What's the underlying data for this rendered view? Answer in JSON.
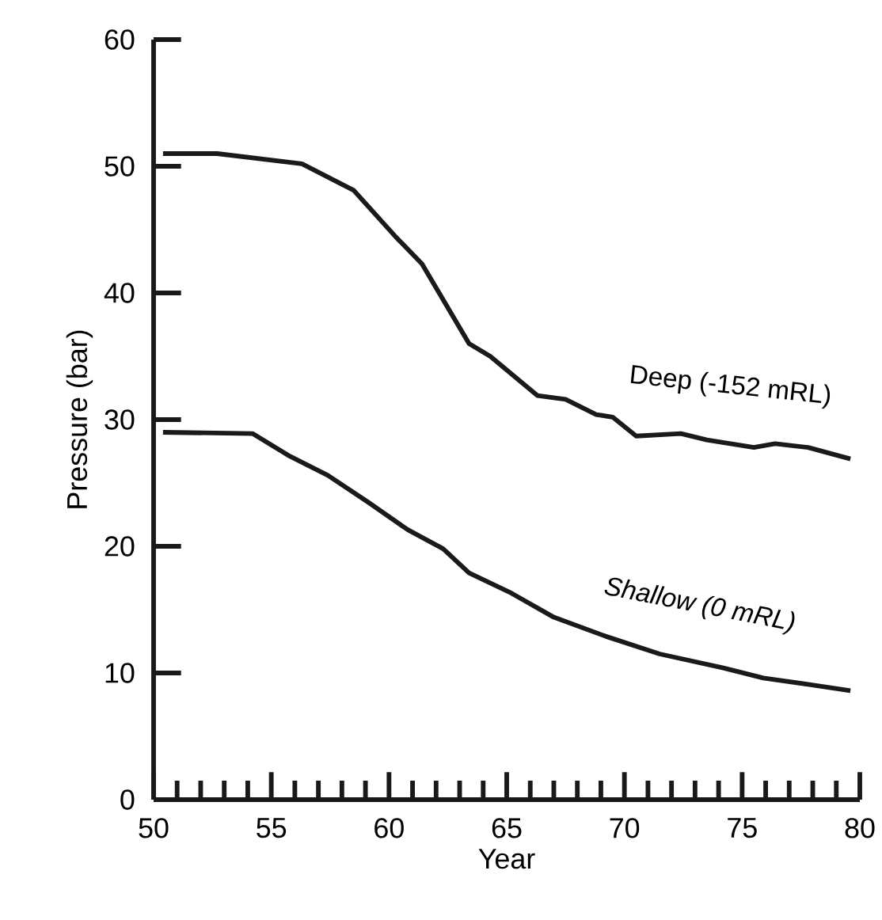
{
  "chart_data": {
    "type": "line",
    "xlabel": "Year",
    "ylabel": "Pressure (bar)",
    "xlim": [
      50,
      80
    ],
    "ylim": [
      0,
      60
    ],
    "xticks": [
      50,
      {
        "value": 51,
        "label": null
      },
      {
        "value": 52,
        "label": null
      },
      {
        "value": 53,
        "label": null
      },
      {
        "value": 54,
        "label": null
      },
      55,
      {
        "value": 56,
        "label": null
      },
      {
        "value": 57,
        "label": null
      },
      {
        "value": 58,
        "label": null
      },
      {
        "value": 59,
        "label": null
      },
      60,
      {
        "value": 61,
        "label": null
      },
      {
        "value": 62,
        "label": null
      },
      {
        "value": 63,
        "label": null
      },
      {
        "value": 64,
        "label": null
      },
      65,
      {
        "value": 66,
        "label": null
      },
      {
        "value": 67,
        "label": null
      },
      {
        "value": 68,
        "label": null
      },
      {
        "value": 69,
        "label": null
      },
      70,
      {
        "value": 71,
        "label": null
      },
      {
        "value": 72,
        "label": null
      },
      {
        "value": 73,
        "label": null
      },
      {
        "value": 74,
        "label": null
      },
      75,
      {
        "value": 76,
        "label": null
      },
      {
        "value": 77,
        "label": null
      },
      {
        "value": 78,
        "label": null
      },
      {
        "value": 79,
        "label": null
      },
      80
    ],
    "yticks": [
      0,
      10,
      20,
      30,
      40,
      50,
      60
    ],
    "grid": false,
    "legend": false,
    "marker": "none",
    "line_style": "solid",
    "series": [
      {
        "name": "Deep (-152 mRL)",
        "color": "#1a1a1a",
        "x": [
          50.4,
          52.7,
          56.3,
          58.5,
          60.3,
          61.4,
          63.4,
          64.3,
          66.3,
          67.5,
          68.8,
          69.5,
          70.5,
          72.4,
          73.5,
          75.5,
          76.4,
          77.8,
          79.6
        ],
        "values": [
          51.0,
          51.0,
          50.2,
          48.1,
          44.4,
          42.3,
          36.0,
          35.0,
          31.9,
          31.6,
          30.4,
          30.2,
          28.7,
          28.9,
          28.4,
          27.8,
          28.1,
          27.8,
          26.9
        ]
      },
      {
        "name": "Shallow (0 mRL)",
        "color": "#1a1a1a",
        "x": [
          50.4,
          54.2,
          55.8,
          57.4,
          59.1,
          60.8,
          62.3,
          63.4,
          65.2,
          67.0,
          69.2,
          71.5,
          74.2,
          75.9,
          77.8,
          79.6
        ],
        "values": [
          29.0,
          28.9,
          27.1,
          25.6,
          23.5,
          21.3,
          19.8,
          17.9,
          16.3,
          14.4,
          12.9,
          11.5,
          10.4,
          9.6,
          9.1,
          8.6
        ]
      }
    ]
  }
}
